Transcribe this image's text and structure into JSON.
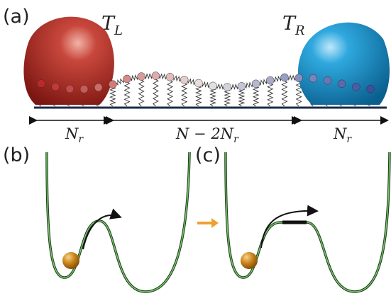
{
  "panel_a": {
    "label": "(a)",
    "left_bath": {
      "symbol": "T",
      "subscript": "L"
    },
    "right_bath": {
      "symbol": "T",
      "subscript": "R"
    },
    "left_segment": {
      "symbol": "N",
      "subscript": "r"
    },
    "middle_segment": {
      "symbol": "N − 2N",
      "subscript": "r"
    },
    "right_segment": {
      "symbol": "N",
      "subscript": "r"
    }
  },
  "panel_b": {
    "label": "(b)"
  },
  "panel_c": {
    "label": "(c)"
  }
}
